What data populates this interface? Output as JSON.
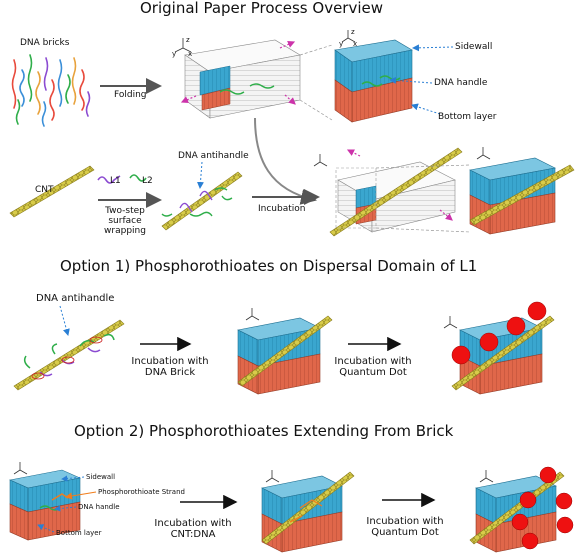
{
  "headings": {
    "overview": "Original Paper Process Overview",
    "option1": "Option 1) Phosphorothioates on Dispersal Domain of L1",
    "option2": "Option 2) Phosphorothioates Extending From Brick"
  },
  "overview": {
    "dna_bricks": "DNA bricks",
    "folding": "Folding",
    "sidewall": "Sidewall",
    "dna_handle": "DNA handle",
    "bottom_layer": "Bottom layer",
    "cnt": "CNT",
    "l1": "L1",
    "l2": "L2",
    "dna_antihandle": "DNA antihandle",
    "two_step_line1": "Two-step",
    "two_step_line2": "surface",
    "two_step_line3": "wrapping",
    "incubation": "Incubation"
  },
  "option1": {
    "dna_antihandle": "DNA antihandle",
    "step1_line1": "Incubation with",
    "step1_line2": "DNA Brick",
    "step2_line1": "Incubation with",
    "step2_line2": "Quantum Dot"
  },
  "option2": {
    "sidewall": "Sidewall",
    "phosphorothioate": "Phosphorothioate Strand",
    "dna_handle": "DNA handle",
    "bottom_layer": "Bottom layer",
    "step1_line1": "Incubation with",
    "step1_line2": "CNT:DNA",
    "step2_line1": "Incubation with",
    "step2_line2": "Quantum Dot"
  },
  "axes": {
    "z": "z",
    "y": "y",
    "x": "x"
  },
  "colors": {
    "sidewall": "#3aa6cf",
    "bottom": "#e0674a",
    "cnt": "#d8cc4a",
    "quantum_dot": "#ee1111",
    "arrow": "#333333",
    "magenta": "#cc33aa"
  }
}
